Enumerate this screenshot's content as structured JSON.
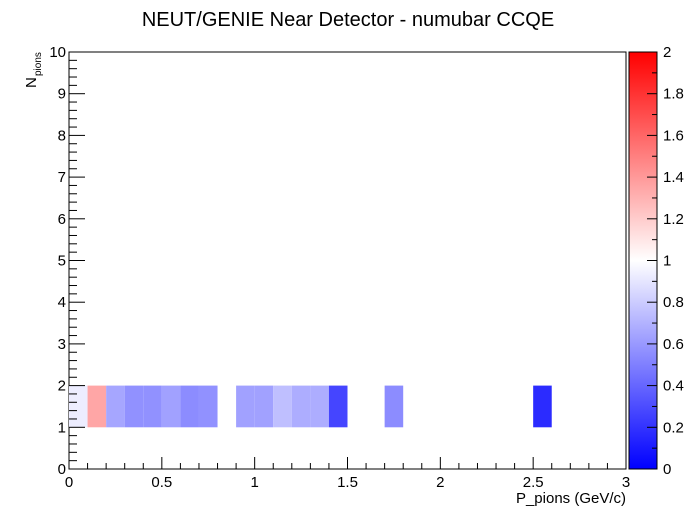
{
  "chart_data": {
    "type": "heatmap",
    "title": "NEUT/GENIE Near Detector - numubar CCQE",
    "xlabel": "P_pions (GeV/c)",
    "ylabel": "N",
    "ylabel_sub": "pions",
    "xlim": [
      0,
      3
    ],
    "ylim": [
      0,
      10
    ],
    "zlim": [
      0,
      2
    ],
    "x_ticks": [
      "0",
      "0.5",
      "1",
      "1.5",
      "2",
      "2.5",
      "3"
    ],
    "y_ticks": [
      "0",
      "1",
      "2",
      "3",
      "4",
      "5",
      "6",
      "7",
      "8",
      "9",
      "10"
    ],
    "z_ticks": [
      "0",
      "0.2",
      "0.4",
      "0.6",
      "0.8",
      "1",
      "1.2",
      "1.4",
      "1.6",
      "1.8",
      "2"
    ],
    "colorscale": [
      "#0000ff",
      "#ffffff",
      "#ff0000"
    ],
    "grid": false,
    "cells": [
      {
        "x0": 0.0,
        "x1": 0.1,
        "y0": 1,
        "y1": 2,
        "z": 0.93
      },
      {
        "x0": 0.1,
        "x1": 0.2,
        "y0": 1,
        "y1": 2,
        "z": 1.35
      },
      {
        "x0": 0.2,
        "x1": 0.3,
        "y0": 1,
        "y1": 2,
        "z": 0.65
      },
      {
        "x0": 0.3,
        "x1": 0.4,
        "y0": 1,
        "y1": 2,
        "z": 0.57
      },
      {
        "x0": 0.4,
        "x1": 0.5,
        "y0": 1,
        "y1": 2,
        "z": 0.57
      },
      {
        "x0": 0.5,
        "x1": 0.6,
        "y0": 1,
        "y1": 2,
        "z": 0.63
      },
      {
        "x0": 0.6,
        "x1": 0.7,
        "y0": 1,
        "y1": 2,
        "z": 0.55
      },
      {
        "x0": 0.7,
        "x1": 0.8,
        "y0": 1,
        "y1": 2,
        "z": 0.57
      },
      {
        "x0": 0.9,
        "x1": 1.0,
        "y0": 1,
        "y1": 2,
        "z": 0.63
      },
      {
        "x0": 1.0,
        "x1": 1.1,
        "y0": 1,
        "y1": 2,
        "z": 0.63
      },
      {
        "x0": 1.1,
        "x1": 1.2,
        "y0": 1,
        "y1": 2,
        "z": 0.75
      },
      {
        "x0": 1.2,
        "x1": 1.3,
        "y0": 1,
        "y1": 2,
        "z": 0.68
      },
      {
        "x0": 1.3,
        "x1": 1.4,
        "y0": 1,
        "y1": 2,
        "z": 0.68
      },
      {
        "x0": 1.4,
        "x1": 1.5,
        "y0": 1,
        "y1": 2,
        "z": 0.27
      },
      {
        "x0": 1.7,
        "x1": 1.8,
        "y0": 1,
        "y1": 2,
        "z": 0.55
      },
      {
        "x0": 2.5,
        "x1": 2.6,
        "y0": 1,
        "y1": 2,
        "z": 0.17
      }
    ]
  }
}
